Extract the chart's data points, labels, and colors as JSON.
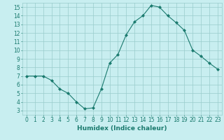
{
  "x": [
    0,
    1,
    2,
    3,
    4,
    5,
    6,
    7,
    8,
    9,
    10,
    11,
    12,
    13,
    14,
    15,
    16,
    17,
    18,
    19,
    20,
    21,
    22,
    23
  ],
  "y": [
    7,
    7,
    7,
    6.5,
    5.5,
    5,
    4,
    3.2,
    3.3,
    5.5,
    8.5,
    9.5,
    11.8,
    13.3,
    14,
    15.2,
    15,
    14,
    13.2,
    12.3,
    10,
    9.3,
    8.5,
    7.8
  ],
  "line_color": "#1a7a6e",
  "marker": "D",
  "marker_size": 2,
  "bg_color": "#c8eef0",
  "grid_color": "#99cccc",
  "xlabel": "Humidex (Indice chaleur)",
  "xlim": [
    -0.5,
    23.5
  ],
  "ylim": [
    2.5,
    15.5
  ],
  "yticks": [
    3,
    4,
    5,
    6,
    7,
    8,
    9,
    10,
    11,
    12,
    13,
    14,
    15
  ],
  "xticks": [
    0,
    1,
    2,
    3,
    4,
    5,
    6,
    7,
    8,
    9,
    10,
    11,
    12,
    13,
    14,
    15,
    16,
    17,
    18,
    19,
    20,
    21,
    22,
    23
  ],
  "xtick_labels": [
    "0",
    "1",
    "2",
    "3",
    "4",
    "5",
    "6",
    "7",
    "8",
    "9",
    "10",
    "11",
    "12",
    "13",
    "14",
    "15",
    "16",
    "17",
    "18",
    "19",
    "20",
    "21",
    "22",
    "23"
  ],
  "label_fontsize": 6.5,
  "tick_fontsize": 5.5
}
